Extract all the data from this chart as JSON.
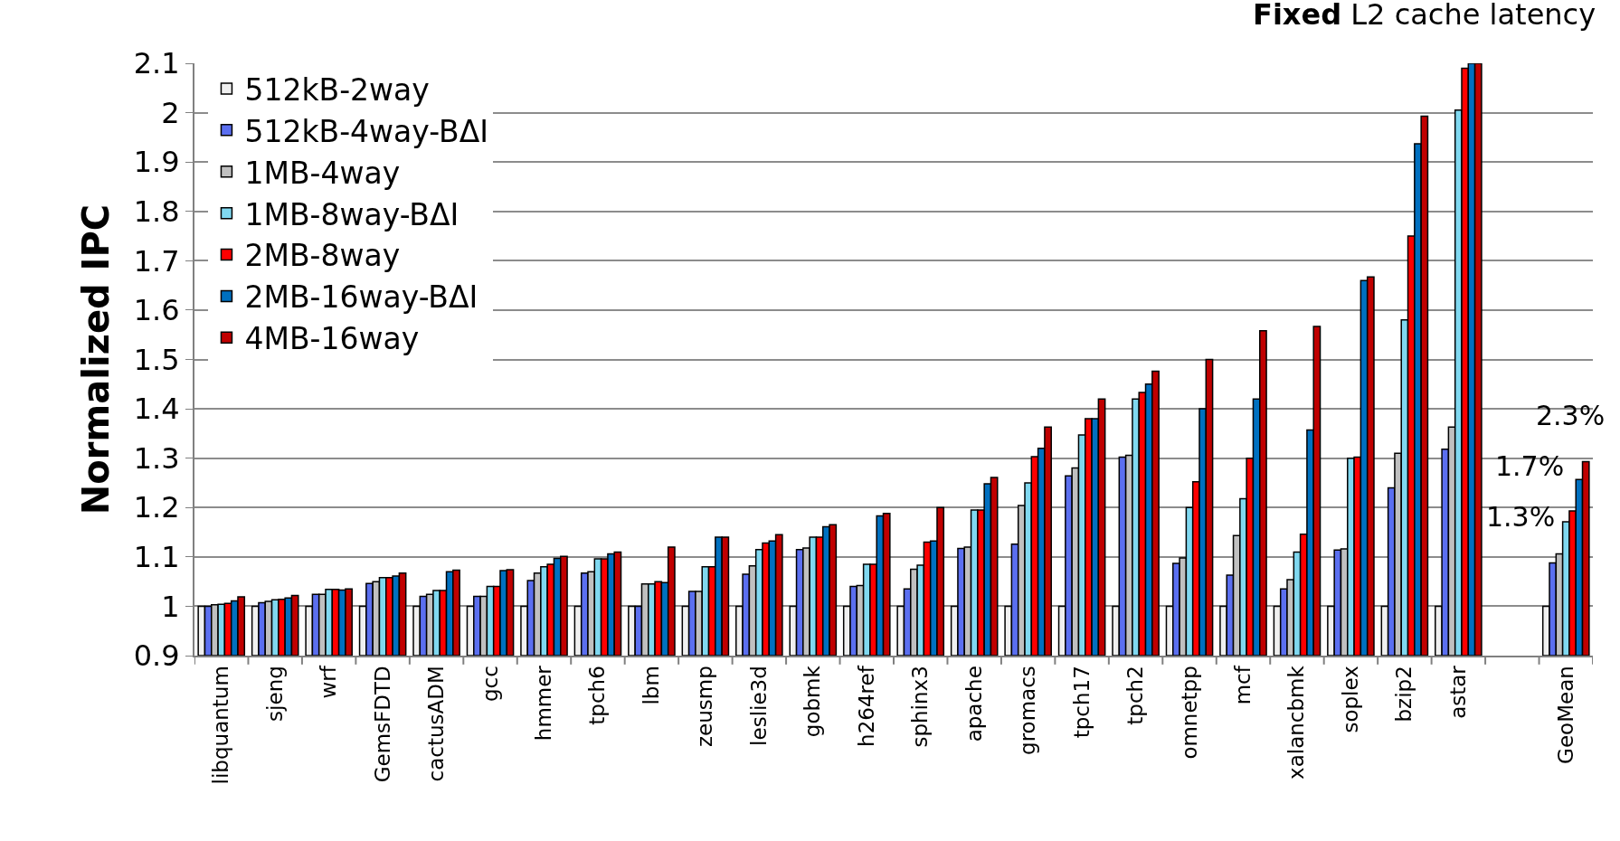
{
  "chart_data": {
    "type": "bar",
    "title": "Fixed L2 cache latency",
    "ylabel": "Normalized IPC",
    "categories": [
      "libquantum",
      "sjeng",
      "wrf",
      "GemsFDTD",
      "cactusADM",
      "gcc",
      "hmmer",
      "tpch6",
      "lbm",
      "zeusmp",
      "leslie3d",
      "gobmk",
      "h264ref",
      "sphinx3",
      "apache",
      "gromacs",
      "tpch17",
      "tpch2",
      "omnetpp",
      "mcf",
      "xalancbmk",
      "soplex",
      "bzip2",
      "astar",
      null,
      "GeoMean"
    ],
    "series": [
      {
        "name": "512kB-2way",
        "color": "#f0f0f0",
        "values": [
          1.0,
          1.0,
          1.0,
          1.0,
          1.0,
          1.0,
          1.0,
          1.0,
          1.0,
          1.0,
          1.0,
          1.0,
          1.0,
          1.0,
          1.0,
          1.0,
          1.0,
          1.0,
          1.0,
          1.0,
          1.0,
          1.0,
          1.0,
          1.0,
          null,
          1.0
        ]
      },
      {
        "name": "512kB-4way-BΔI",
        "color": "#5b6ff0",
        "values": [
          1.0,
          1.007,
          1.024,
          1.046,
          1.02,
          1.02,
          1.052,
          1.067,
          1.0,
          1.03,
          1.065,
          1.115,
          1.04,
          1.035,
          1.117,
          1.126,
          1.264,
          1.302,
          1.087,
          1.063,
          1.035,
          1.114,
          1.24,
          1.318,
          null,
          1.088
        ]
      },
      {
        "name": "1MB-4way",
        "color": "#c0c0c0",
        "values": [
          1.003,
          1.01,
          1.024,
          1.05,
          1.024,
          1.02,
          1.067,
          1.07,
          1.045,
          1.03,
          1.082,
          1.118,
          1.042,
          1.075,
          1.12,
          1.204,
          1.28,
          1.306,
          1.098,
          1.143,
          1.054,
          1.116,
          1.31,
          1.363,
          null,
          1.106
        ]
      },
      {
        "name": "1MB-8way-BΔI",
        "color": "#80d8f0",
        "values": [
          1.004,
          1.013,
          1.034,
          1.058,
          1.032,
          1.04,
          1.08,
          1.096,
          1.045,
          1.08,
          1.115,
          1.14,
          1.085,
          1.083,
          1.195,
          1.25,
          1.347,
          1.42,
          1.2,
          1.218,
          1.11,
          1.3,
          1.58,
          2.005,
          null,
          1.171
        ]
      },
      {
        "name": "2MB-8way",
        "color": "#ff0000",
        "values": [
          1.006,
          1.014,
          1.034,
          1.058,
          1.032,
          1.04,
          1.085,
          1.096,
          1.05,
          1.08,
          1.128,
          1.14,
          1.085,
          1.13,
          1.195,
          1.303,
          1.38,
          1.433,
          1.252,
          1.3,
          1.146,
          1.302,
          1.75,
          2.09,
          null,
          1.193
        ]
      },
      {
        "name": "2MB-16way-BΔI",
        "color": "#0070c0",
        "values": [
          1.011,
          1.017,
          1.033,
          1.061,
          1.07,
          1.072,
          1.097,
          1.106,
          1.048,
          1.14,
          1.132,
          1.161,
          1.183,
          1.132,
          1.248,
          1.32,
          1.38,
          1.45,
          1.4,
          1.42,
          1.357,
          1.66,
          1.937,
          2.1,
          null,
          1.257
        ]
      },
      {
        "name": "4MB-16way",
        "color": "#c00000",
        "values": [
          1.019,
          1.022,
          1.035,
          1.067,
          1.073,
          1.074,
          1.101,
          1.11,
          1.12,
          1.14,
          1.145,
          1.165,
          1.188,
          1.2,
          1.261,
          1.363,
          1.42,
          1.476,
          1.5,
          1.558,
          1.567,
          1.667,
          1.993,
          2.1,
          null,
          1.293
        ]
      }
    ],
    "ylim": [
      0.9,
      2.1
    ],
    "yticks": [
      0.9,
      1,
      1.1,
      1.2,
      1.3,
      1.4,
      1.5,
      1.6,
      1.7,
      1.8,
      1.9,
      2,
      2.1
    ],
    "grid": "y",
    "legend": "top left",
    "annotations": [
      "1.3%",
      "1.7%",
      "2.3%"
    ]
  }
}
